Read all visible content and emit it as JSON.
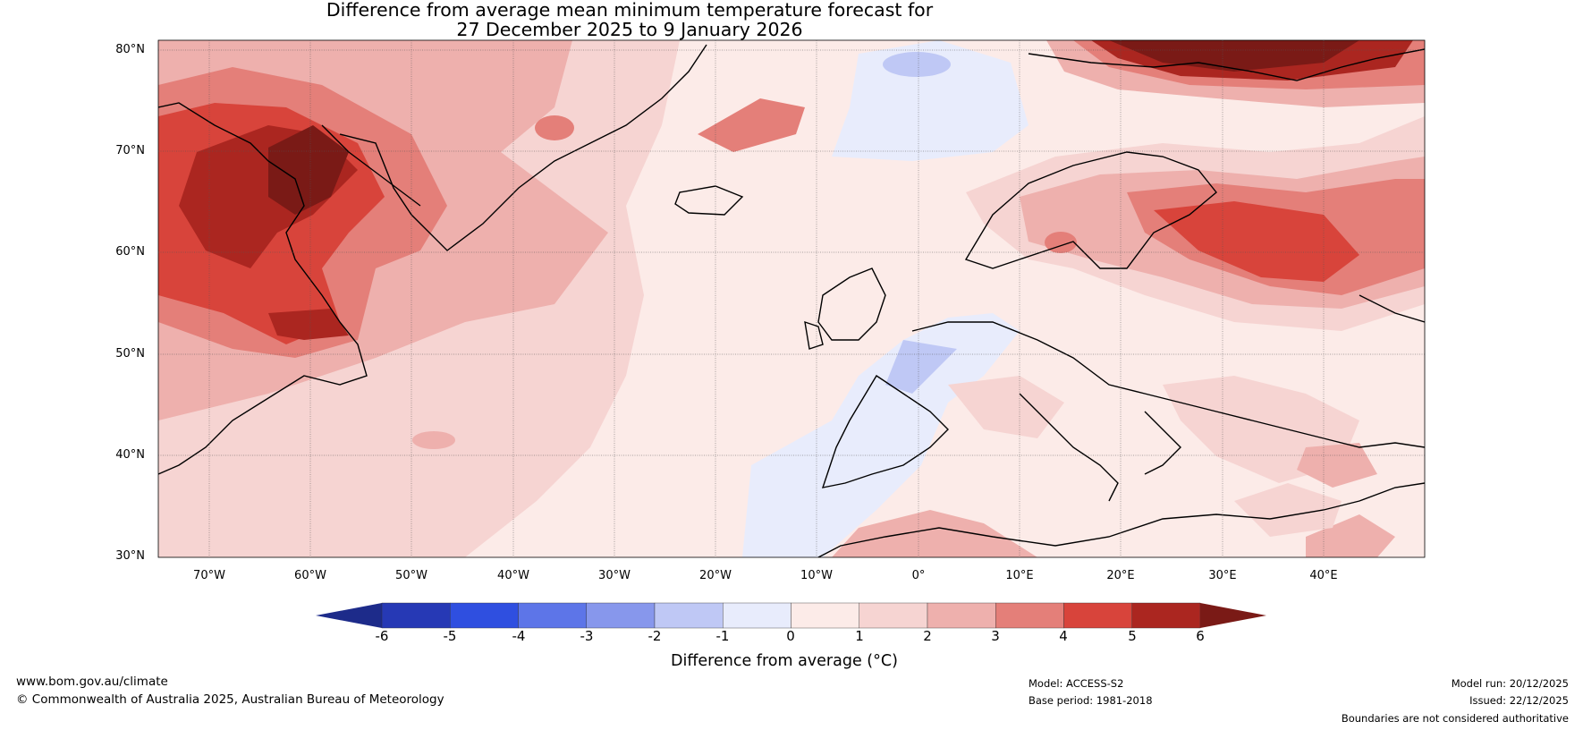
{
  "title": {
    "line1": "Difference from average mean minimum temperature forecast for",
    "line2": "27 December 2025 to 9 January 2026"
  },
  "axes": {
    "lat_labels": [
      "80°N",
      "70°N",
      "60°N",
      "50°N",
      "40°N",
      "30°N"
    ],
    "lon_labels": [
      "70°W",
      "60°W",
      "50°W",
      "40°W",
      "30°W",
      "20°W",
      "10°W",
      "0°",
      "10°E",
      "20°E",
      "30°E",
      "40°E"
    ]
  },
  "colorbar": {
    "ticks": [
      "-6",
      "-5",
      "-4",
      "-3",
      "-2",
      "-1",
      "0",
      "1",
      "2",
      "3",
      "4",
      "5",
      "6"
    ],
    "label": "Difference from average (°C)",
    "colors": [
      "#1d2b8a",
      "#2639b5",
      "#2f4fe0",
      "#5d75e8",
      "#8797ec",
      "#bfc8f5",
      "#e8ecfc",
      "#fcebe8",
      "#f6d4d2",
      "#eeb0ad",
      "#e47f79",
      "#d8443b",
      "#ab2620",
      "#7a1a16"
    ]
  },
  "footer": {
    "url": "www.bom.gov.au/climate",
    "copyright": "© Commonwealth of Australia 2025, Australian Bureau of Meteorology",
    "model": "Model: ACCESS-S2",
    "base_period": "Base period: 1981-2018",
    "model_run": "Model run: 20/12/2025",
    "issued": "Issued: 22/12/2025",
    "disclaimer": "Boundaries are not considered authoritative"
  }
}
